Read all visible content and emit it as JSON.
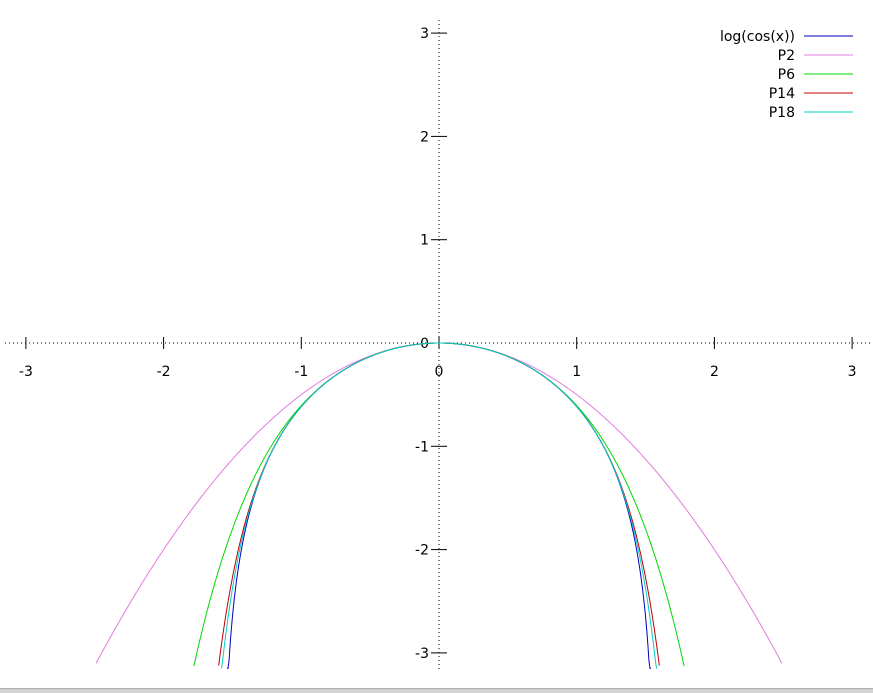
{
  "chart_data": {
    "type": "line",
    "title": "",
    "xlabel": "",
    "ylabel": "",
    "xlim": [
      -3.1,
      3.1
    ],
    "ylim": [
      -3.1,
      3.1
    ],
    "grid": false,
    "legend_position": "top-right",
    "x_ticks": [
      "-3",
      "-2",
      "-1",
      "0",
      "1",
      "2",
      "3"
    ],
    "x_tick_values": [
      -3,
      -2,
      -1,
      0,
      1,
      2,
      3
    ],
    "y_ticks": [
      "-3",
      "-2",
      "-1",
      "0",
      "1",
      "2",
      "3"
    ],
    "y_tick_values": [
      -3,
      -2,
      -1,
      0,
      1,
      2,
      3
    ],
    "series": [
      {
        "name": "log(cos(x))",
        "color": "#0000c0",
        "kind": "logcos",
        "x_domain": [
          -1.54,
          1.54
        ]
      },
      {
        "name": "P2",
        "color": "#e07ce0",
        "kind": "taylor",
        "order": 2,
        "x_domain": [
          -2.49,
          2.49
        ]
      },
      {
        "name": "P6",
        "color": "#00d800",
        "kind": "taylor",
        "order": 6,
        "x_domain": [
          -1.78,
          1.78
        ]
      },
      {
        "name": "P14",
        "color": "#c00000",
        "kind": "taylor",
        "order": 14,
        "x_domain": [
          -1.6,
          1.6
        ]
      },
      {
        "name": "P18",
        "color": "#00d0c8",
        "kind": "taylor",
        "order": 18,
        "x_domain": [
          -1.58,
          1.58
        ]
      }
    ]
  }
}
